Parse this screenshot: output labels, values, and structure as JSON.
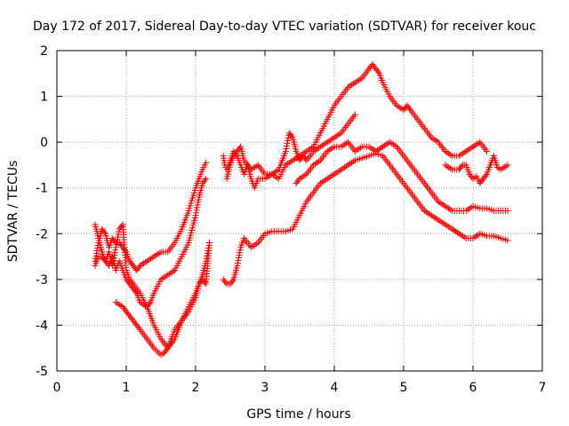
{
  "chart_data": {
    "type": "scatter",
    "title": "Day 172 of 2017, Sidereal Day-to-day VTEC variation (SDTVAR) for receiver kouc",
    "xlabel": "GPS time / hours",
    "ylabel": "SDTVAR / TECUs",
    "xlim": [
      0,
      7
    ],
    "ylim": [
      -5,
      2
    ],
    "xticks": [
      "0",
      "1",
      "2",
      "3",
      "4",
      "5",
      "6",
      "7"
    ],
    "yticks": [
      "-5",
      "-4",
      "-3",
      "-2",
      "-1",
      "0",
      "1",
      "2"
    ],
    "grid": true,
    "marker": "+",
    "color": "#ff0000",
    "series": [
      {
        "x": [
          0.55,
          0.6,
          0.65,
          0.7,
          0.75,
          0.8,
          0.85,
          0.9,
          0.95,
          1.0,
          1.05,
          1.1,
          1.15,
          1.2,
          1.3,
          1.4,
          1.5,
          1.6,
          1.7,
          1.8,
          1.9,
          2.0,
          2.05,
          2.1,
          2.15
        ],
        "y": [
          -2.6,
          -2.2,
          -1.9,
          -2.0,
          -2.3,
          -2.1,
          -2.2,
          -2.2,
          -2.3,
          -2.4,
          -2.6,
          -2.7,
          -2.8,
          -2.7,
          -2.6,
          -2.5,
          -2.4,
          -2.4,
          -2.2,
          -1.9,
          -1.5,
          -1.0,
          -0.8,
          -0.6,
          -0.45
        ]
      },
      {
        "x": [
          0.55,
          0.6,
          0.65,
          0.7,
          0.75,
          0.8,
          0.85,
          0.9,
          0.95,
          1.0,
          1.05,
          1.1,
          1.15,
          1.2,
          1.3,
          1.35,
          1.4,
          1.5,
          1.6,
          1.7,
          1.8,
          1.9,
          2.0,
          2.05,
          2.1,
          2.15
        ],
        "y": [
          -1.8,
          -2.1,
          -2.4,
          -2.6,
          -2.7,
          -2.5,
          -2.8,
          -2.6,
          -2.8,
          -3.0,
          -3.1,
          -3.2,
          -3.3,
          -3.5,
          -3.6,
          -3.5,
          -3.3,
          -3.0,
          -2.9,
          -2.8,
          -2.5,
          -2.2,
          -1.6,
          -1.2,
          -0.9,
          -0.8
        ]
      },
      {
        "x": [
          0.55,
          0.6,
          0.65,
          0.7,
          0.75,
          0.8,
          0.85,
          0.9,
          0.95,
          1.0,
          1.05,
          1.1,
          1.2,
          1.3,
          1.4,
          1.5,
          1.6,
          1.7,
          1.8,
          1.9,
          2.0,
          2.05,
          2.1,
          2.15,
          2.2
        ],
        "y": [
          -2.7,
          -2.5,
          -2.5,
          -2.6,
          -2.4,
          -2.7,
          -2.3,
          -1.9,
          -1.8,
          -2.8,
          -3.0,
          -3.1,
          -3.3,
          -3.6,
          -4.0,
          -4.3,
          -4.5,
          -4.3,
          -3.9,
          -3.6,
          -3.3,
          -3.1,
          -2.9,
          -2.6,
          -2.2
        ]
      },
      {
        "x": [
          0.85,
          0.9,
          0.95,
          1.0,
          1.05,
          1.1,
          1.15,
          1.2,
          1.3,
          1.4,
          1.5,
          1.55,
          1.6,
          1.65,
          1.7,
          1.8,
          1.9,
          2.0,
          2.05,
          2.1,
          2.15,
          2.2
        ],
        "y": [
          -3.5,
          -3.55,
          -3.6,
          -3.7,
          -3.8,
          -3.9,
          -4.0,
          -4.1,
          -4.3,
          -4.5,
          -4.65,
          -4.6,
          -4.5,
          -4.3,
          -4.1,
          -3.9,
          -3.7,
          -3.4,
          -3.1,
          -3.0,
          -3.1,
          -2.2
        ]
      },
      {
        "x": [
          2.4,
          2.42,
          2.45,
          2.5,
          2.55,
          2.6,
          2.65,
          2.7,
          2.75,
          2.8,
          2.85,
          2.9,
          3.0,
          3.1,
          3.2,
          3.3,
          3.4,
          3.5,
          3.6,
          3.7,
          3.8,
          3.9,
          4.0,
          4.1,
          4.2,
          4.3,
          4.4,
          4.5,
          4.55,
          4.6,
          4.65,
          4.7,
          4.8,
          4.9,
          5.0,
          5.05,
          5.1,
          5.2,
          5.3,
          5.4,
          5.5,
          5.6,
          5.7,
          5.8,
          5.9,
          6.0,
          6.1,
          6.2
        ],
        "y": [
          -0.3,
          -0.5,
          -0.6,
          -0.4,
          -0.2,
          -0.3,
          -0.5,
          -0.7,
          -0.5,
          -0.8,
          -1.0,
          -0.8,
          -0.8,
          -0.7,
          -0.8,
          -0.5,
          -0.4,
          -0.3,
          -0.2,
          -0.1,
          0.2,
          0.5,
          0.8,
          1.0,
          1.2,
          1.3,
          1.4,
          1.6,
          1.7,
          1.6,
          1.5,
          1.3,
          1.0,
          0.8,
          0.7,
          0.8,
          0.7,
          0.5,
          0.3,
          0.1,
          0.0,
          -0.2,
          -0.3,
          -0.3,
          -0.2,
          -0.1,
          0.0,
          -0.2
        ]
      },
      {
        "x": [
          2.45,
          2.5,
          2.55,
          2.6,
          2.65,
          2.7,
          2.8,
          2.9,
          3.0,
          3.1,
          3.2,
          3.3,
          3.35,
          3.4,
          3.45,
          3.5,
          3.55,
          3.6,
          3.7,
          3.8,
          3.9,
          4.0,
          4.1,
          4.2,
          4.3
        ],
        "y": [
          -0.8,
          -0.5,
          -0.3,
          -0.2,
          -0.1,
          -0.4,
          -0.6,
          -0.5,
          -0.7,
          -0.7,
          -0.6,
          -0.2,
          0.2,
          0.1,
          -0.2,
          -0.4,
          -0.3,
          -0.4,
          -0.2,
          -0.1,
          0.0,
          0.1,
          0.2,
          0.4,
          0.6
        ]
      },
      {
        "x": [
          3.45,
          3.5,
          3.6,
          3.7,
          3.8,
          3.9,
          4.0,
          4.1,
          4.2,
          4.3,
          4.4,
          4.5,
          4.6,
          4.7,
          4.8,
          4.9,
          5.0,
          5.1,
          5.2,
          5.3,
          5.4,
          5.5,
          5.6,
          5.7,
          5.8,
          5.9,
          6.0,
          6.1,
          6.2,
          6.3,
          6.4,
          6.5
        ],
        "y": [
          -0.9,
          -0.8,
          -0.7,
          -0.5,
          -0.4,
          -0.2,
          -0.1,
          -0.1,
          0.0,
          -0.2,
          -0.1,
          -0.1,
          -0.2,
          -0.1,
          0.0,
          -0.1,
          -0.3,
          -0.5,
          -0.7,
          -0.9,
          -1.1,
          -1.3,
          -1.4,
          -1.5,
          -1.5,
          -1.5,
          -1.4,
          -1.45,
          -1.45,
          -1.5,
          -1.5,
          -1.5
        ]
      },
      {
        "x": [
          2.4,
          2.45,
          2.5,
          2.55,
          2.6,
          2.65,
          2.7,
          2.8,
          2.9,
          3.0,
          3.1,
          3.2,
          3.3,
          3.4,
          3.5,
          3.6,
          3.7,
          3.8,
          3.9,
          4.0,
          4.1,
          4.2,
          4.3,
          4.4,
          4.5,
          4.6,
          4.7,
          4.8,
          4.9,
          5.0,
          5.1,
          5.2,
          5.3,
          5.4,
          5.5,
          5.6,
          5.7,
          5.8,
          5.9,
          6.0,
          6.1,
          6.2,
          6.3,
          6.4,
          6.5
        ],
        "y": [
          -3.0,
          -3.1,
          -3.1,
          -3.0,
          -2.7,
          -2.3,
          -2.1,
          -2.3,
          -2.2,
          -2.0,
          -1.95,
          -1.95,
          -1.95,
          -1.9,
          -1.6,
          -1.3,
          -1.1,
          -0.9,
          -0.8,
          -0.7,
          -0.6,
          -0.5,
          -0.4,
          -0.35,
          -0.3,
          -0.25,
          -0.3,
          -0.5,
          -0.7,
          -0.9,
          -1.1,
          -1.3,
          -1.5,
          -1.6,
          -1.7,
          -1.8,
          -1.9,
          -2.0,
          -2.1,
          -2.1,
          -2.0,
          -2.05,
          -2.05,
          -2.1,
          -2.15
        ]
      },
      {
        "x": [
          5.6,
          5.7,
          5.8,
          5.85,
          5.9,
          5.95,
          6.0,
          6.05,
          6.1,
          6.15,
          6.2,
          6.25,
          6.3,
          6.35,
          6.4,
          6.45,
          6.5
        ],
        "y": [
          -0.5,
          -0.6,
          -0.6,
          -0.5,
          -0.5,
          -0.7,
          -0.8,
          -0.75,
          -0.9,
          -0.8,
          -0.7,
          -0.5,
          -0.3,
          -0.55,
          -0.6,
          -0.55,
          -0.5
        ]
      }
    ]
  }
}
